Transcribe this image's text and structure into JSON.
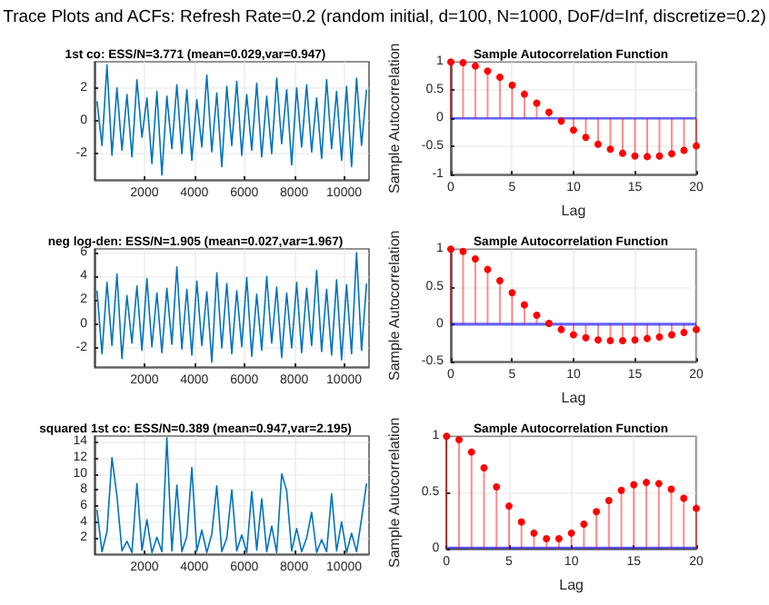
{
  "chart_data": [
    {
      "type": "line",
      "title": "1st co: ESS/N=3.771 (mean=0.029,var=0.947)",
      "annotations": [
        "Trace Plots and ACFs: Refresh Rate=0.2 (random initial, d=100, N=1000, DoF/d=Inf, discretize=0.2)"
      ],
      "x": [
        100,
        300,
        500,
        700,
        900,
        1100,
        1300,
        1500,
        1700,
        1900,
        2100,
        2300,
        2500,
        2700,
        2900,
        3100,
        3300,
        3500,
        3700,
        3900,
        4100,
        4300,
        4500,
        4700,
        4900,
        5100,
        5300,
        5500,
        5700,
        5900,
        6100,
        6300,
        6500,
        6700,
        6900,
        7100,
        7300,
        7500,
        7700,
        7900,
        8100,
        8300,
        8500,
        8700,
        8900,
        9100,
        9300,
        9500,
        9700,
        9900,
        10100,
        10300,
        10500,
        10700,
        10900
      ],
      "series": [
        {
          "color": "#0072bd",
          "values": [
            1.2,
            -1.5,
            3.4,
            -2.1,
            2.0,
            -1.8,
            1.6,
            -2.2,
            2.5,
            -1.0,
            1.4,
            -2.6,
            1.8,
            -3.3,
            1.5,
            -1.7,
            2.2,
            -2.0,
            1.9,
            -2.4,
            1.3,
            -1.6,
            2.8,
            -1.9,
            1.7,
            -2.8,
            2.1,
            -1.5,
            2.4,
            -2.1,
            1.6,
            -1.8,
            2.3,
            -2.2,
            1.5,
            -2.0,
            2.6,
            -1.4,
            1.9,
            -2.7,
            2.0,
            -1.6,
            2.2,
            -1.9,
            1.4,
            -2.3,
            2.5,
            -1.7,
            1.8,
            -2.4,
            2.1,
            -2.8,
            2.6,
            -1.5,
            1.9
          ]
        }
      ],
      "xlim": [
        1,
        11000
      ],
      "xticks": [
        2000,
        4000,
        6000,
        8000,
        10000
      ],
      "ylim": [
        -3.6,
        3.6
      ],
      "yticks": [
        -2,
        0,
        2
      ],
      "grid": true,
      "marker": "none"
    },
    {
      "type": "lollipop",
      "title": "Sample Autocorrelation Function",
      "xlabel": "Lag",
      "ylabel": "Sample Autocorrelation",
      "x": [
        0,
        1,
        2,
        3,
        4,
        5,
        6,
        7,
        8,
        9,
        10,
        11,
        12,
        13,
        14,
        15,
        16,
        17,
        18,
        19,
        20
      ],
      "series": [
        {
          "color": "#ff0000",
          "values": [
            1,
            0.99,
            0.93,
            0.84,
            0.73,
            0.59,
            0.43,
            0.27,
            0.11,
            -0.05,
            -0.21,
            -0.34,
            -0.46,
            -0.55,
            -0.62,
            -0.67,
            -0.68,
            -0.67,
            -0.63,
            -0.57,
            -0.49
          ]
        }
      ],
      "xlim": [
        0,
        20
      ],
      "xticks": [
        0,
        5,
        10,
        15,
        20
      ],
      "ylim": [
        -1,
        1
      ],
      "yticks": [
        -1,
        -0.5,
        0,
        0.5,
        1
      ],
      "grid": true,
      "marker": "circle",
      "bands": [
        {
          "axis": "y",
          "from": -0.02,
          "to": 0.02,
          "color": "#0000ff"
        }
      ]
    },
    {
      "type": "line",
      "title": "neg log-den: ESS/N=1.905 (mean=0.027,var=1.967)",
      "x": [
        100,
        300,
        500,
        700,
        900,
        1100,
        1300,
        1500,
        1700,
        1900,
        2100,
        2300,
        2500,
        2700,
        2900,
        3100,
        3300,
        3500,
        3700,
        3900,
        4100,
        4300,
        4500,
        4700,
        4900,
        5100,
        5300,
        5500,
        5700,
        5900,
        6100,
        6300,
        6500,
        6700,
        6900,
        7100,
        7300,
        7500,
        7700,
        7900,
        8100,
        8300,
        8500,
        8700,
        8900,
        9100,
        9300,
        9500,
        9700,
        9900,
        10100,
        10300,
        10500,
        10700,
        10900
      ],
      "series": [
        {
          "color": "#0072bd",
          "values": [
            2.8,
            -2.5,
            3.5,
            -1.8,
            4.2,
            -2.9,
            2.4,
            -1.6,
            3.2,
            -2.2,
            3.8,
            -1.9,
            2.6,
            -2.4,
            3.0,
            -1.7,
            4.8,
            -2.1,
            2.9,
            -2.6,
            3.6,
            -1.8,
            2.7,
            -3.2,
            4.3,
            -2.0,
            3.4,
            -2.5,
            2.8,
            -1.9,
            3.9,
            -2.7,
            2.5,
            -2.2,
            4.0,
            -1.6,
            3.1,
            -2.8,
            2.6,
            -2.0,
            3.5,
            -2.4,
            3.0,
            -1.8,
            4.5,
            -2.3,
            2.9,
            -2.6,
            3.7,
            -3.0,
            3.3,
            -2.5,
            6.0,
            -2.2,
            3.4
          ]
        }
      ],
      "xlim": [
        1,
        11000
      ],
      "xticks": [
        2000,
        4000,
        6000,
        8000,
        10000
      ],
      "ylim": [
        -3.6,
        6.3
      ],
      "yticks": [
        -2,
        0,
        2,
        4,
        6
      ],
      "grid": true,
      "marker": "none"
    },
    {
      "type": "lollipop",
      "title": "Sample Autocorrelation Function",
      "xlabel": "Lag",
      "ylabel": "Sample Autocorrelation",
      "x": [
        0,
        1,
        2,
        3,
        4,
        5,
        6,
        7,
        8,
        9,
        10,
        11,
        12,
        13,
        14,
        15,
        16,
        17,
        18,
        19,
        20
      ],
      "series": [
        {
          "color": "#ff0000",
          "values": [
            1,
            0.97,
            0.87,
            0.73,
            0.58,
            0.42,
            0.26,
            0.12,
            0.01,
            -0.07,
            -0.14,
            -0.18,
            -0.21,
            -0.22,
            -0.22,
            -0.21,
            -0.19,
            -0.17,
            -0.14,
            -0.11,
            -0.07
          ]
        }
      ],
      "xlim": [
        0,
        20
      ],
      "xticks": [
        0,
        5,
        10,
        15,
        20
      ],
      "ylim": [
        -0.5,
        1
      ],
      "yticks": [
        -0.5,
        0,
        0.5,
        1
      ],
      "grid": true,
      "marker": "circle",
      "bands": [
        {
          "axis": "y",
          "from": -0.02,
          "to": 0.02,
          "color": "#0000ff"
        }
      ]
    },
    {
      "type": "line",
      "title": "squared 1st co: ESS/N=0.389 (mean=0.947,var=2.195)",
      "x": [
        100,
        300,
        500,
        700,
        900,
        1100,
        1300,
        1500,
        1700,
        1900,
        2100,
        2300,
        2500,
        2700,
        2900,
        3100,
        3300,
        3500,
        3700,
        3900,
        4100,
        4300,
        4500,
        4700,
        4900,
        5100,
        5300,
        5500,
        5700,
        5900,
        6100,
        6300,
        6500,
        6700,
        6900,
        7100,
        7300,
        7500,
        7700,
        7900,
        8100,
        8300,
        8500,
        8700,
        8900,
        9100,
        9300,
        9500,
        9700,
        9900,
        10100,
        10300,
        10500,
        10700,
        10900
      ],
      "series": [
        {
          "color": "#0072bd",
          "values": [
            5.5,
            0.3,
            2.8,
            12.0,
            7.2,
            0.4,
            1.6,
            0.2,
            8.8,
            0.5,
            4.3,
            0.2,
            2.1,
            0.3,
            14.5,
            0.4,
            8.6,
            0.3,
            2.2,
            10.8,
            0.4,
            3.0,
            0.2,
            2.5,
            8.5,
            0.3,
            2.0,
            8.0,
            0.4,
            2.4,
            0.2,
            7.8,
            0.5,
            6.9,
            0.3,
            3.5,
            0.2,
            10.0,
            7.9,
            0.4,
            3.2,
            0.3,
            2.0,
            5.2,
            0.2,
            1.8,
            0.3,
            7.5,
            0.4,
            4.0,
            0.2,
            2.6,
            0.3,
            4.4,
            8.8
          ]
        }
      ],
      "xlim": [
        1,
        11000
      ],
      "xticks": [
        2000,
        4000,
        6000,
        8000,
        10000
      ],
      "ylim": [
        0,
        14.7
      ],
      "yticks": [
        2,
        4,
        6,
        8,
        10,
        12,
        14
      ],
      "grid": true,
      "marker": "none"
    },
    {
      "type": "lollipop",
      "title": "Sample Autocorrelation Function",
      "xlabel": "Lag",
      "ylabel": "Sample Autocorrelation",
      "x": [
        0,
        1,
        2,
        3,
        4,
        5,
        6,
        7,
        8,
        9,
        10,
        11,
        12,
        13,
        14,
        15,
        16,
        17,
        18,
        19,
        20
      ],
      "series": [
        {
          "color": "#ff0000",
          "values": [
            1,
            0.97,
            0.86,
            0.72,
            0.55,
            0.38,
            0.24,
            0.14,
            0.09,
            0.09,
            0.14,
            0.22,
            0.33,
            0.43,
            0.52,
            0.57,
            0.59,
            0.58,
            0.53,
            0.45,
            0.36
          ]
        }
      ],
      "xlim": [
        0,
        20
      ],
      "xticks": [
        0,
        5,
        10,
        15,
        20
      ],
      "ylim": [
        0,
        1
      ],
      "yticks": [
        0,
        0.5,
        1
      ],
      "grid": true,
      "marker": "circle",
      "bands": [
        {
          "axis": "y",
          "from": -0.02,
          "to": 0.02,
          "color": "#0000ff"
        }
      ]
    }
  ]
}
